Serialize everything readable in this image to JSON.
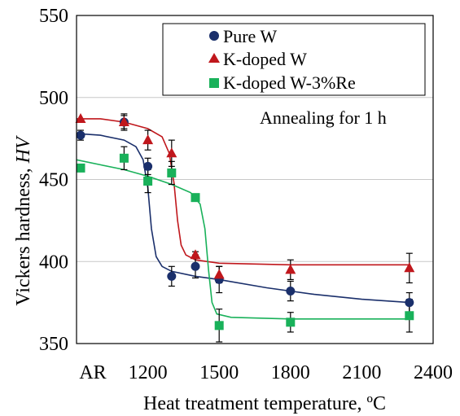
{
  "chart_data": {
    "type": "scatter",
    "xlabel_main": "Heat treatment  temperature, ",
    "xlabel_unit": "ºC",
    "ylabel_main": "Vickers hardness, ",
    "ylabel_italic": "HV",
    "annotation": "Annealing  for 1 h",
    "xlim": [
      900,
      2400
    ],
    "ylim": [
      350,
      550
    ],
    "x_ticks": [
      {
        "value": 900,
        "label": "AR"
      },
      {
        "value": 1200,
        "label": "1200"
      },
      {
        "value": 1500,
        "label": "1500"
      },
      {
        "value": 1800,
        "label": "1800"
      },
      {
        "value": 2100,
        "label": "2100"
      },
      {
        "value": 2400,
        "label": "2400"
      }
    ],
    "y_ticks": [
      350,
      400,
      450,
      500,
      550
    ],
    "grid": "horizontal",
    "legend_position": "top-right",
    "series": [
      {
        "name": "Pure W",
        "marker": "circle",
        "color": "#1a2f6b",
        "points": [
          {
            "x": 900,
            "y": 477,
            "err": 3
          },
          {
            "x": 1100,
            "y": 485,
            "err": 4
          },
          {
            "x": 1200,
            "y": 458,
            "err": 5
          },
          {
            "x": 1300,
            "y": 391,
            "err": 6
          },
          {
            "x": 1400,
            "y": 397,
            "err": 7
          },
          {
            "x": 1500,
            "y": 389,
            "err": 8
          },
          {
            "x": 1800,
            "y": 382,
            "err": 6
          },
          {
            "x": 2300,
            "y": 375,
            "err": 6
          }
        ],
        "fit": [
          [
            900,
            478
          ],
          [
            1000,
            477
          ],
          [
            1100,
            474
          ],
          [
            1150,
            470
          ],
          [
            1180,
            462
          ],
          [
            1200,
            445
          ],
          [
            1215,
            420
          ],
          [
            1235,
            403
          ],
          [
            1260,
            397
          ],
          [
            1300,
            394
          ],
          [
            1400,
            391
          ],
          [
            1500,
            389
          ],
          [
            1700,
            384
          ],
          [
            1900,
            380
          ],
          [
            2100,
            377
          ],
          [
            2300,
            375
          ]
        ]
      },
      {
        "name": "K-doped W",
        "marker": "triangle",
        "color": "#c0171c",
        "points": [
          {
            "x": 900,
            "y": 487,
            "err": 0
          },
          {
            "x": 1100,
            "y": 485,
            "err": 5
          },
          {
            "x": 1200,
            "y": 474,
            "err": 6
          },
          {
            "x": 1300,
            "y": 466,
            "err": 8
          },
          {
            "x": 1400,
            "y": 404,
            "err": 2
          },
          {
            "x": 1500,
            "y": 392,
            "err": 5
          },
          {
            "x": 1800,
            "y": 395,
            "err": 6
          },
          {
            "x": 2300,
            "y": 396,
            "err": 9
          }
        ],
        "fit": [
          [
            900,
            487
          ],
          [
            1000,
            487
          ],
          [
            1100,
            485
          ],
          [
            1200,
            481
          ],
          [
            1260,
            476
          ],
          [
            1290,
            466
          ],
          [
            1310,
            448
          ],
          [
            1325,
            425
          ],
          [
            1340,
            410
          ],
          [
            1360,
            404
          ],
          [
            1400,
            401
          ],
          [
            1500,
            399
          ],
          [
            1800,
            398
          ],
          [
            2300,
            398
          ]
        ]
      },
      {
        "name": "K-doped W-3%Re",
        "marker": "square",
        "color": "#19b15a",
        "points": [
          {
            "x": 900,
            "y": 457,
            "err": 0
          },
          {
            "x": 1100,
            "y": 463,
            "err": 7
          },
          {
            "x": 1200,
            "y": 449,
            "err": 7
          },
          {
            "x": 1300,
            "y": 454,
            "err": 7
          },
          {
            "x": 1400,
            "y": 439,
            "err": 0
          },
          {
            "x": 1500,
            "y": 361,
            "err": 10
          },
          {
            "x": 1800,
            "y": 363,
            "err": 6
          },
          {
            "x": 2300,
            "y": 367,
            "err": 10
          }
        ],
        "fit": [
          [
            900,
            462
          ],
          [
            1000,
            459
          ],
          [
            1100,
            456
          ],
          [
            1200,
            452
          ],
          [
            1300,
            447
          ],
          [
            1380,
            442
          ],
          [
            1420,
            435
          ],
          [
            1440,
            420
          ],
          [
            1455,
            395
          ],
          [
            1470,
            375
          ],
          [
            1490,
            368
          ],
          [
            1550,
            366
          ],
          [
            1800,
            365
          ],
          [
            2300,
            365
          ]
        ]
      }
    ]
  }
}
